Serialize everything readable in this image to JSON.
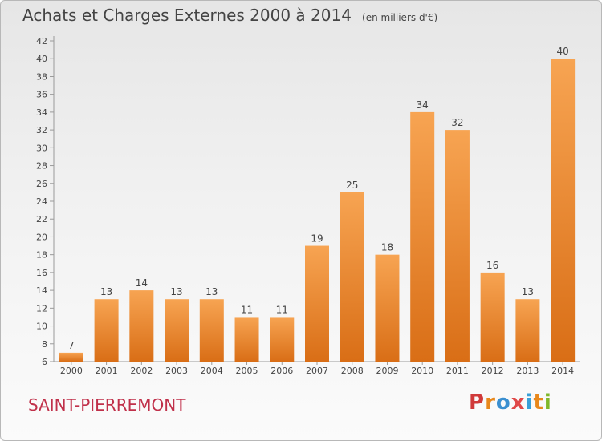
{
  "title": "Achats et Charges Externes 2000 à 2014",
  "unit": "(en milliers d'€)",
  "commune": "SAINT-PIERREMONT",
  "brand": "Proxiti",
  "colors": {
    "bar_top": "#f7a452",
    "bar_bottom": "#d96e16",
    "commune_text": "#c0304a",
    "brand_letters": [
      "#d03a3a",
      "#e8881c",
      "#3a8fd0",
      "#e04848",
      "#3aa0d8",
      "#e8881c",
      "#80b82a"
    ]
  },
  "chart_data": {
    "type": "bar",
    "categories": [
      "2000",
      "2001",
      "2002",
      "2003",
      "2004",
      "2005",
      "2006",
      "2007",
      "2008",
      "2009",
      "2010",
      "2011",
      "2012",
      "2013",
      "2014"
    ],
    "values": [
      7,
      13,
      14,
      13,
      13,
      11,
      11,
      19,
      25,
      18,
      34,
      32,
      16,
      13,
      40
    ],
    "title": "Achats et Charges Externes 2000 à 2014",
    "xlabel": "",
    "ylabel": "",
    "ylim": [
      6,
      42
    ],
    "yticks": [
      6,
      8,
      10,
      12,
      14,
      16,
      18,
      20,
      22,
      24,
      26,
      28,
      30,
      32,
      34,
      36,
      38,
      40,
      42
    ],
    "grid": false,
    "legend": "none",
    "data_labels": true
  }
}
